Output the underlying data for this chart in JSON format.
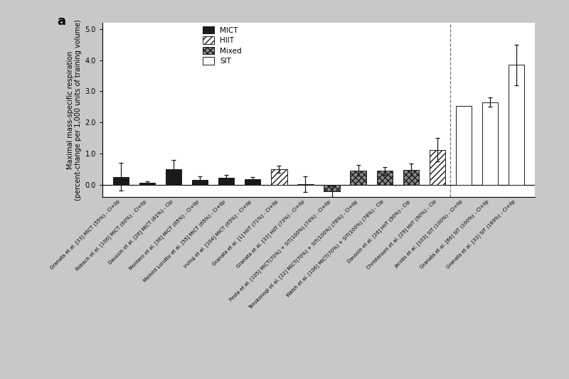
{
  "title_label": "a",
  "ylabel": "Maximal mass-specific respiration\n(percent-change per 1,000 units of training volume)",
  "ylim": [
    -0.4,
    5.2
  ],
  "yticks": [
    0.0,
    1.0,
    2.0,
    3.0,
    4.0,
    5.0
  ],
  "bar_width": 0.6,
  "background_color": "#c8c8c8",
  "plot_bg_color": "#ffffff",
  "bars": [
    {
      "label": "Granata et al. [33] MICT (55%) - CI+IIp",
      "value": 0.25,
      "error": 0.45,
      "type": "MICT"
    },
    {
      "label": "Robach et al. [106] MICT (60%) - CI+IIp",
      "value": 0.05,
      "error": 0.05,
      "type": "MICT"
    },
    {
      "label": "Daussin et al. [26] MICT (61%) - CIp",
      "value": 0.5,
      "error": 0.28,
      "type": "MICT"
    },
    {
      "label": "Montero et al. [36] MICT (65%) - CI+IIp",
      "value": 0.15,
      "error": 0.12,
      "type": "MICT"
    },
    {
      "label": "Meinild Lundby et al. [55] MICT (65%) - CI+IIp",
      "value": 0.22,
      "error": 0.1,
      "type": "MICT"
    },
    {
      "label": "Irving et al. [104] MICT (65%) - CI+IIp",
      "value": 0.18,
      "error": 0.07,
      "type": "MICT"
    },
    {
      "label": "Granata et al. [1] HiiT (71%) - CI+IIp",
      "value": 0.5,
      "error": 0.12,
      "type": "HIIT"
    },
    {
      "label": "Granata et al. [33] HiiT (73%) - CI+IIp",
      "value": 0.02,
      "error": 0.25,
      "type": "HIIT"
    },
    {
      "label": "Pesta et al. [105] MICT(70%) + SIT(100%) (74%) - CI+IIp",
      "value": -0.22,
      "error": 0.18,
      "type": "Mixed"
    },
    {
      "label": "Tonskonogi et al. [22] MICT(70%) + SIT(100%) (78%) - CI+IIp",
      "value": 0.46,
      "error": 0.18,
      "type": "Mixed"
    },
    {
      "label": "Walsh et al. [106] MICT(70%) + SIT(100%) (78%) - CIp",
      "value": 0.44,
      "error": 0.12,
      "type": "Mixed"
    },
    {
      "label": "Daussin et al. [26] HiiT (90%) - CIp",
      "value": 0.48,
      "error": 0.2,
      "type": "Mixed"
    },
    {
      "label": "Christensen et al. [29] HiiT (90%) - CIp",
      "value": 1.12,
      "error": 0.38,
      "type": "HIIT"
    },
    {
      "label": "Jacobs et al. [103] SIT (100%) - CI+IIp",
      "value": 2.52,
      "error": 0.0,
      "type": "SIT"
    },
    {
      "label": "Granata et al. [66] SIT (100%) - CI+IIp",
      "value": 2.65,
      "error": 0.15,
      "type": "SIT"
    },
    {
      "label": "Granata et al. [33] SIT (169%) - CI+IIp",
      "value": 3.85,
      "error": 0.65,
      "type": "SIT"
    }
  ],
  "type_styles": {
    "MICT": {
      "color": "#1a1a1a",
      "hatch": "",
      "edgecolor": "#1a1a1a"
    },
    "HIIT": {
      "color": "#ffffff",
      "hatch": "////",
      "edgecolor": "#1a1a1a"
    },
    "Mixed": {
      "color": "#888888",
      "hatch": "xxxx",
      "edgecolor": "#1a1a1a"
    },
    "SIT": {
      "color": "#ffffff",
      "hatch": "",
      "edgecolor": "#1a1a1a"
    }
  },
  "dashed_line_x": 12.5,
  "legend_order": [
    "MICT",
    "HIIT",
    "Mixed",
    "SIT"
  ]
}
